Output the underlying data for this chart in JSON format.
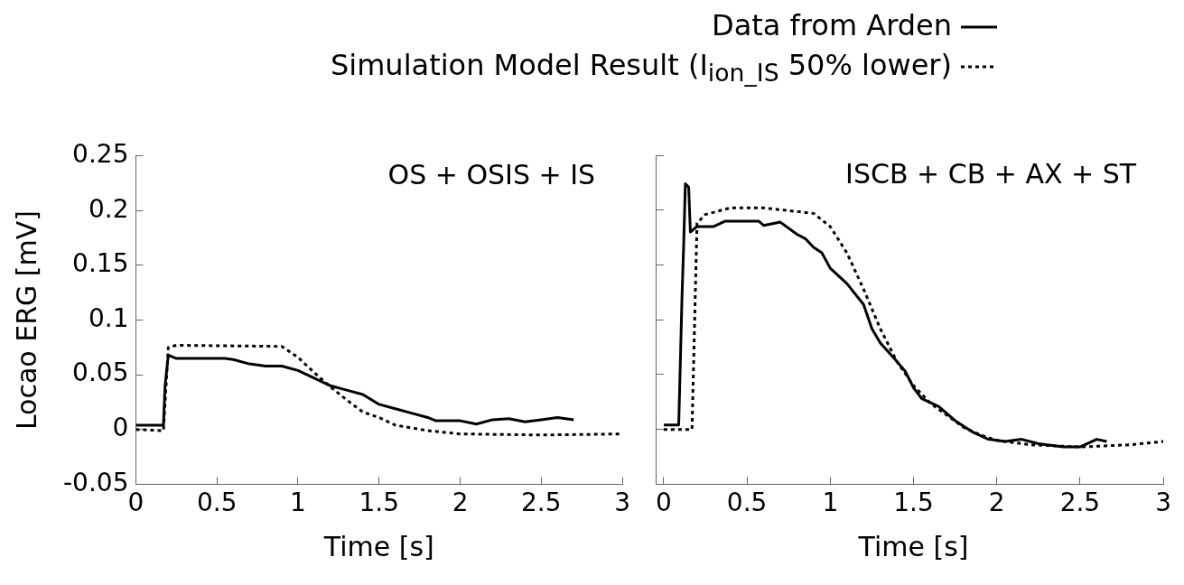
{
  "chart_data": [
    {
      "type": "line",
      "title": "OS + OSIS + IS",
      "xlabel": "Time [s]",
      "ylabel": "Locao ERG [mV]",
      "xlim": [
        0,
        3
      ],
      "xticks": [
        0,
        0.5,
        1,
        1.5,
        2,
        2.5,
        3
      ],
      "ylim": [
        -0.05,
        0.25
      ],
      "yticks": [
        -0.05,
        0,
        0.05,
        0.1,
        0.15,
        0.2,
        0.25
      ],
      "grid": false,
      "legend": false,
      "marker": "none",
      "series": [
        {
          "color": "#000000",
          "line_style": "solid",
          "x": [
            0,
            0.17,
            0.18,
            0.2,
            0.25,
            0.55,
            0.6,
            0.7,
            0.8,
            0.9,
            1.0,
            1.1,
            1.2,
            1.3,
            1.4,
            1.5,
            1.6,
            1.7,
            1.8,
            1.85,
            2.0,
            2.1,
            2.2,
            2.3,
            2.4,
            2.5,
            2.6,
            2.7
          ],
          "values": [
            0.004,
            0.004,
            0.04,
            0.068,
            0.065,
            0.065,
            0.064,
            0.06,
            0.058,
            0.058,
            0.054,
            0.047,
            0.04,
            0.036,
            0.032,
            0.023,
            0.019,
            0.015,
            0.011,
            0.008,
            0.008,
            0.005,
            0.009,
            0.01,
            0.007,
            0.009,
            0.011,
            0.009
          ]
        },
        {
          "color": "#000000",
          "line_style": "dotted",
          "x": [
            0,
            0.17,
            0.2,
            0.25,
            0.9,
            1.0,
            1.1,
            1.2,
            1.3,
            1.4,
            1.5,
            1.6,
            1.8,
            2.0,
            2.5,
            3.0
          ],
          "values": [
            0,
            -0.001,
            0.075,
            0.077,
            0.076,
            0.066,
            0.052,
            0.039,
            0.027,
            0.016,
            0.011,
            0.004,
            -0.001,
            -0.004,
            -0.005,
            -0.004
          ]
        }
      ]
    },
    {
      "type": "line",
      "title": "ISCB + CB + AX + ST",
      "xlabel": "Time [s]",
      "xlim": [
        0,
        3
      ],
      "xticks": [
        0,
        0.5,
        1,
        1.5,
        2,
        2.5,
        3
      ],
      "ylim": [
        -0.05,
        0.25
      ],
      "yticks": [
        -0.05,
        0,
        0.05,
        0.1,
        0.15,
        0.2,
        0.25
      ],
      "tick_labels": "x",
      "grid": false,
      "legend": "top",
      "marker": "none",
      "series": [
        {
          "name": "Data from Arden",
          "color": "#000000",
          "line_style": "solid",
          "x": [
            0,
            0.09,
            0.1,
            0.11,
            0.12,
            0.13,
            0.15,
            0.16,
            0.2,
            0.3,
            0.37,
            0.57,
            0.6,
            0.7,
            0.8,
            0.85,
            0.9,
            0.95,
            1.0,
            1.1,
            1.2,
            1.25,
            1.3,
            1.4,
            1.45,
            1.5,
            1.55,
            1.65,
            1.75,
            1.85,
            1.95,
            2.05,
            2.15,
            2.25,
            2.4,
            2.5,
            2.6,
            2.66
          ],
          "values": [
            0.004,
            0.004,
            0.062,
            0.122,
            0.169,
            0.224,
            0.221,
            0.18,
            0.185,
            0.185,
            0.19,
            0.19,
            0.186,
            0.189,
            0.178,
            0.174,
            0.166,
            0.161,
            0.147,
            0.133,
            0.114,
            0.092,
            0.079,
            0.062,
            0.053,
            0.038,
            0.028,
            0.021,
            0.008,
            -0.002,
            -0.009,
            -0.011,
            -0.009,
            -0.013,
            -0.016,
            -0.016,
            -0.009,
            -0.011
          ]
        },
        {
          "name": "Simulation Model Result (I$_{ion_IS}$ 50% lower)",
          "color": "#000000",
          "line_style": "dotted",
          "x": [
            0,
            0.17,
            0.2,
            0.25,
            0.4,
            0.6,
            0.9,
            1.0,
            1.1,
            1.2,
            1.3,
            1.4,
            1.5,
            1.6,
            1.7,
            1.8,
            1.9,
            2.0,
            2.2,
            2.5,
            2.8,
            3.0
          ],
          "values": [
            0,
            0,
            0.188,
            0.196,
            0.202,
            0.202,
            0.197,
            0.185,
            0.161,
            0.128,
            0.092,
            0.062,
            0.04,
            0.024,
            0.013,
            0.002,
            -0.005,
            -0.01,
            -0.014,
            -0.016,
            -0.014,
            -0.011
          ]
        }
      ]
    }
  ]
}
